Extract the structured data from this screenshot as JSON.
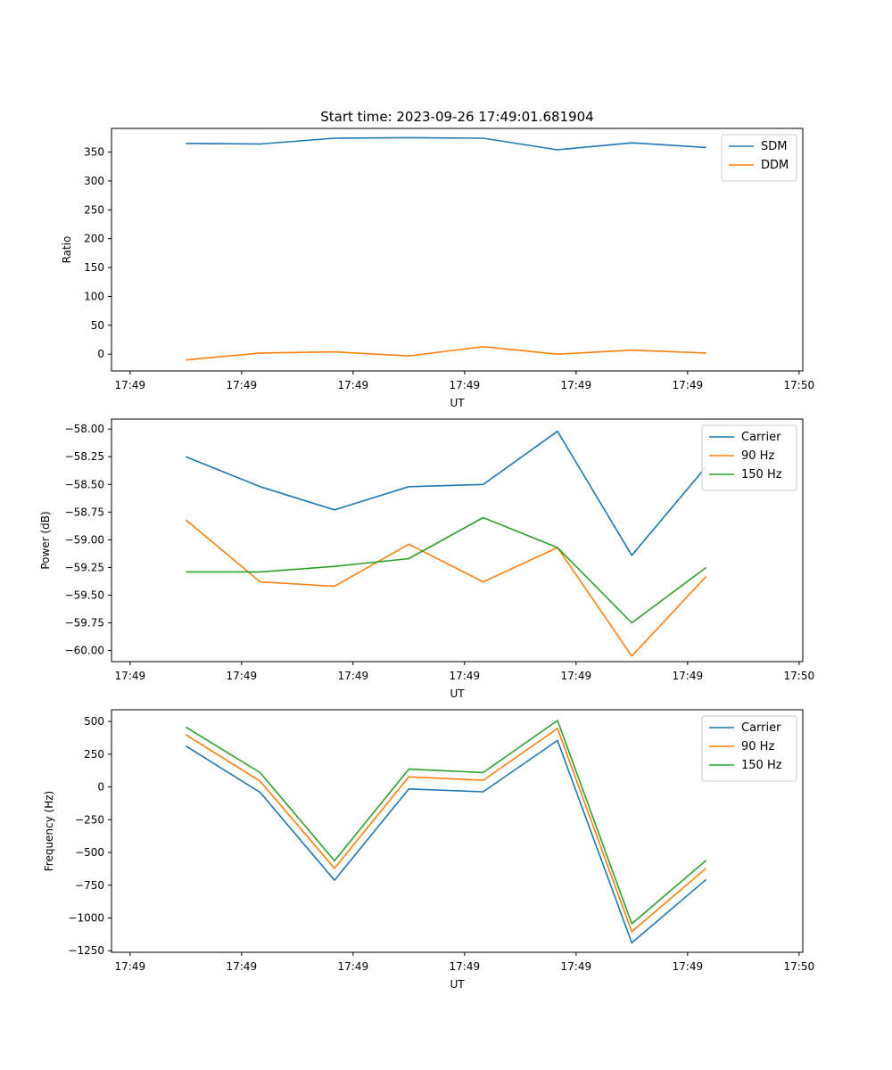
{
  "figure_title": "Start time: 2023-09-26 17:49:01.681904",
  "colors": {
    "series1": "#1f77b4",
    "series2": "#ff7f0e",
    "series3": "#2ca02c",
    "axis": "#000000",
    "legend_border": "#cccccc",
    "background": "#ffffff"
  },
  "chart_data": [
    {
      "type": "line",
      "title": "Start time: 2023-09-26 17:49:01.681904",
      "xlabel": "UT",
      "ylabel": "Ratio",
      "xlim": [
        0,
        9.3
      ],
      "x": [
        1,
        2,
        3,
        4,
        5,
        6,
        7,
        8
      ],
      "xticks": [
        0.25,
        1.75,
        3.25,
        4.75,
        6.25,
        7.75,
        9.25
      ],
      "xtick_labels": [
        "17:49",
        "17:49",
        "17:49",
        "17:49",
        "17:49",
        "17:49",
        "17:50"
      ],
      "ylim": [
        -29,
        391
      ],
      "yticks": [
        0,
        50,
        100,
        150,
        200,
        250,
        300,
        350
      ],
      "ytick_labels": [
        "0",
        "50",
        "100",
        "150",
        "200",
        "250",
        "300",
        "350"
      ],
      "legend_position": "top-right",
      "series": [
        {
          "name": "SDM",
          "color": "#1f77b4",
          "values": [
            365,
            364,
            374,
            375,
            374,
            354,
            366,
            358
          ]
        },
        {
          "name": "DDM",
          "color": "#ff7f0e",
          "values": [
            -10,
            2,
            4,
            -3,
            13,
            0,
            7,
            2
          ]
        }
      ]
    },
    {
      "type": "line",
      "title": "",
      "xlabel": "UT",
      "ylabel": "Power (dB)",
      "xlim": [
        0,
        9.3
      ],
      "x": [
        1,
        2,
        3,
        4,
        5,
        6,
        7,
        8
      ],
      "xticks": [
        0.25,
        1.75,
        3.25,
        4.75,
        6.25,
        7.75,
        9.25
      ],
      "xtick_labels": [
        "17:49",
        "17:49",
        "17:49",
        "17:49",
        "17:49",
        "17:49",
        "17:50"
      ],
      "ylim": [
        -60.1,
        -57.91
      ],
      "yticks": [
        -60.0,
        -59.75,
        -59.5,
        -59.25,
        -59.0,
        -58.75,
        -58.5,
        -58.25,
        -58.0
      ],
      "ytick_labels": [
        "−60.00",
        "−59.75",
        "−59.50",
        "−59.25",
        "−59.00",
        "−58.75",
        "−58.50",
        "−58.25",
        "−58.00"
      ],
      "legend_position": "top-right",
      "series": [
        {
          "name": "Carrier",
          "color": "#1f77b4",
          "values": [
            -58.25,
            -58.52,
            -58.73,
            -58.52,
            -58.5,
            -58.02,
            -59.14,
            -58.34
          ]
        },
        {
          "name": "90 Hz",
          "color": "#ff7f0e",
          "values": [
            -58.82,
            -59.38,
            -59.42,
            -59.04,
            -59.38,
            -59.07,
            -60.05,
            -59.33
          ]
        },
        {
          "name": "150 Hz",
          "color": "#2ca02c",
          "values": [
            -59.29,
            -59.29,
            -59.24,
            -59.17,
            -58.8,
            -59.07,
            -59.75,
            -59.25
          ]
        }
      ]
    },
    {
      "type": "line",
      "title": "",
      "xlabel": "UT",
      "ylabel": "Frequency (Hz)",
      "xlim": [
        0,
        9.3
      ],
      "x": [
        1,
        2,
        3,
        4,
        5,
        6,
        7,
        8
      ],
      "xticks": [
        0.25,
        1.75,
        3.25,
        4.75,
        6.25,
        7.75,
        9.25
      ],
      "xtick_labels": [
        "17:49",
        "17:49",
        "17:49",
        "17:49",
        "17:49",
        "17:49",
        "17:50"
      ],
      "ylim": [
        -1262,
        589
      ],
      "yticks": [
        -1250,
        -1000,
        -750,
        -500,
        -250,
        0,
        250,
        500
      ],
      "ytick_labels": [
        "−1250",
        "−1000",
        "−750",
        "−500",
        "−250",
        "0",
        "250",
        "500"
      ],
      "legend_position": "top-right",
      "series": [
        {
          "name": "Carrier",
          "color": "#1f77b4",
          "values": [
            313,
            -42,
            -712,
            -15,
            -37,
            355,
            -1190,
            -706
          ]
        },
        {
          "name": "90 Hz",
          "color": "#ff7f0e",
          "values": [
            399,
            44,
            -621,
            77,
            51,
            446,
            -1105,
            -620
          ]
        },
        {
          "name": "150 Hz",
          "color": "#2ca02c",
          "values": [
            457,
            109,
            -564,
            136,
            110,
            507,
            -1044,
            -560
          ]
        }
      ]
    }
  ]
}
